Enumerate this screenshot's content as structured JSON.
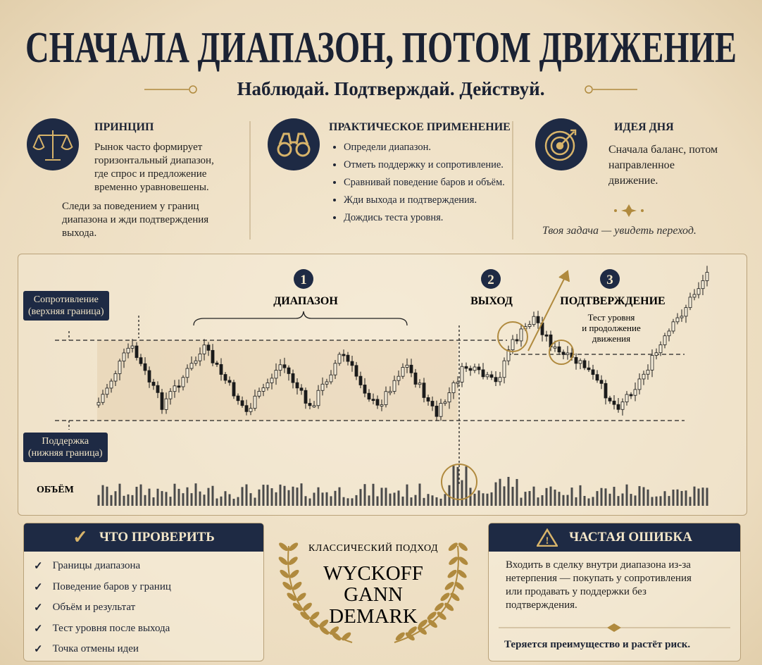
{
  "header": {
    "title": "СНАЧАЛА ДИАПАЗОН, ПОТОМ ДВИЖЕНИЕ",
    "subtitle": "Наблюдай. Подтверждай. Действуй."
  },
  "columns": [
    {
      "heading": "ПРИНЦИП",
      "paragraphs": [
        "Рынок часто формирует горизонтальный диапазон, где спрос и предложение временно уравновешены.",
        "Следи за поведением у границ диапазона и жди подтверждения выхода."
      ]
    },
    {
      "heading": "ПРАКТИЧЕСКОЕ ПРИМЕНЕНИЕ",
      "items": [
        "Определи диапазон.",
        "Отметь поддержку и сопротивление.",
        "Сравнивай поведение баров и объём.",
        "Жди выхода и подтверждения.",
        "Дождись теста уровня."
      ]
    },
    {
      "heading": "ИДЕЯ ДНЯ",
      "text": "Сначала баланс, потом направленное движение.",
      "note": "Твоя задача — увидеть переход."
    }
  ],
  "diagram": {
    "resistance_label": [
      "Сопротивление",
      "(верхняя граница)"
    ],
    "support_label": [
      "Поддержка",
      "(нижняя граница)"
    ],
    "volume_label": "ОБЪЁМ",
    "stages": [
      {
        "number": "1",
        "label": "ДИАПАЗОН"
      },
      {
        "number": "2",
        "label": "ВЫХОД"
      },
      {
        "number": "3",
        "label": "ПОДТВЕРЖДЕНИЕ",
        "note": [
          "Тест уровня",
          "и продолжение",
          "движения"
        ]
      }
    ]
  },
  "checklist": {
    "title": "ЧТО ПРОВЕРИТЬ",
    "items": [
      "Границы диапазона",
      "Поведение баров у границ",
      "Объём и результат",
      "Тест уровня после выхода",
      "Точка отмены идеи"
    ]
  },
  "classic": {
    "caption": "КЛАССИЧЕСКИЙ ПОДХОД",
    "names": [
      "WYCKOFF",
      "GANN",
      "DEMARK"
    ]
  },
  "mistake": {
    "title": "ЧАСТАЯ ОШИБКА",
    "text": "Входить в сделку внутри диапазона из-за нетерпения — покупать у сопротивления или продавать у поддержки без подтверждения.",
    "conclusion": "Теряется преимущество и растёт риск."
  }
}
